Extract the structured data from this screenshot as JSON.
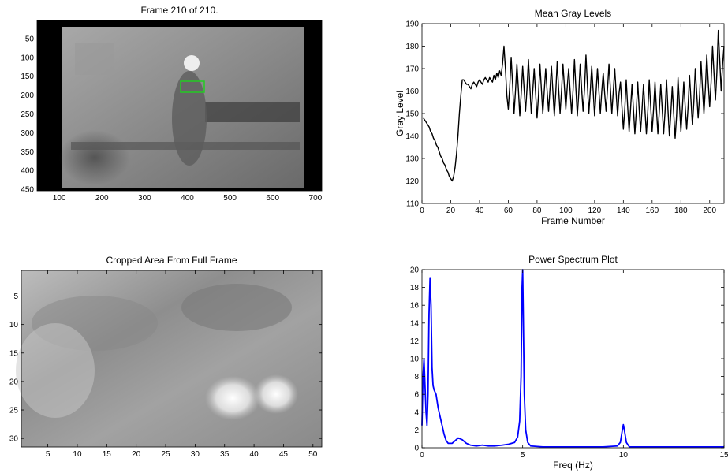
{
  "chart_data": [
    {
      "type": "image",
      "title": "Frame  210 of 210.",
      "xlim": [
        48,
        715
      ],
      "xticks": [
        100,
        200,
        300,
        400,
        500,
        600,
        700
      ],
      "ylim": [
        2,
        454
      ],
      "yticks": [
        50,
        100,
        150,
        200,
        250,
        300,
        350,
        400,
        450
      ],
      "y_reversed": true
    },
    {
      "type": "line",
      "title": "Mean Gray Levels",
      "xlabel": "Frame Number",
      "ylabel": "Gray Level",
      "color": "#000000",
      "xlim": [
        0,
        210
      ],
      "xticks": [
        0,
        20,
        40,
        60,
        80,
        100,
        120,
        140,
        160,
        180,
        200
      ],
      "ylim": [
        110,
        190
      ],
      "yticks": [
        110,
        120,
        130,
        140,
        150,
        160,
        170,
        180,
        190
      ],
      "x": [
        1,
        2,
        3,
        4,
        5,
        6,
        7,
        8,
        9,
        10,
        11,
        12,
        13,
        14,
        15,
        16,
        17,
        18,
        19,
        20,
        21,
        22,
        23,
        24,
        25,
        26,
        27,
        28,
        29,
        30,
        31,
        32,
        33,
        34,
        35,
        36,
        37,
        38,
        39,
        40,
        41,
        42,
        43,
        44,
        45,
        46,
        47,
        48,
        49,
        50,
        51,
        52,
        53,
        54,
        55,
        56,
        57,
        58,
        59,
        60,
        61,
        62,
        63,
        64,
        65,
        66,
        67,
        68,
        69,
        70,
        71,
        72,
        73,
        74,
        75,
        76,
        77,
        78,
        79,
        80,
        81,
        82,
        83,
        84,
        85,
        86,
        87,
        88,
        89,
        90,
        91,
        92,
        93,
        94,
        95,
        96,
        97,
        98,
        99,
        100,
        101,
        102,
        103,
        104,
        105,
        106,
        107,
        108,
        109,
        110,
        111,
        112,
        113,
        114,
        115,
        116,
        117,
        118,
        119,
        120,
        121,
        122,
        123,
        124,
        125,
        126,
        127,
        128,
        129,
        130,
        131,
        132,
        133,
        134,
        135,
        136,
        137,
        138,
        139,
        140,
        141,
        142,
        143,
        144,
        145,
        146,
        147,
        148,
        149,
        150,
        151,
        152,
        153,
        154,
        155,
        156,
        157,
        158,
        159,
        160,
        161,
        162,
        163,
        164,
        165,
        166,
        167,
        168,
        169,
        170,
        171,
        172,
        173,
        174,
        175,
        176,
        177,
        178,
        179,
        180,
        181,
        182,
        183,
        184,
        185,
        186,
        187,
        188,
        189,
        190,
        191,
        192,
        193,
        194,
        195,
        196,
        197,
        198,
        199,
        200,
        201,
        202,
        203,
        204,
        205,
        206,
        207,
        208,
        209,
        210
      ],
      "values": [
        148,
        147,
        146,
        145,
        144,
        142,
        141,
        139,
        138,
        136,
        135,
        133,
        131,
        130,
        128,
        127,
        125,
        124,
        122,
        121,
        120,
        122,
        126,
        132,
        140,
        150,
        158,
        165,
        165,
        164,
        163,
        163,
        162,
        161,
        163,
        164,
        163,
        162,
        164,
        165,
        164,
        163,
        165,
        166,
        165,
        164,
        166,
        165,
        164,
        167,
        165,
        168,
        166,
        169,
        167,
        172,
        180,
        170,
        158,
        152,
        162,
        175,
        163,
        150,
        160,
        172,
        161,
        149,
        159,
        171,
        161,
        151,
        161,
        174,
        162,
        150,
        160,
        170,
        159,
        148,
        158,
        172,
        161,
        150,
        160,
        170,
        160,
        151,
        161,
        171,
        160,
        149,
        159,
        173,
        161,
        150,
        160,
        172,
        162,
        152,
        162,
        170,
        160,
        150,
        160,
        174,
        161,
        149,
        159,
        172,
        161,
        151,
        161,
        176,
        163,
        150,
        160,
        171,
        160,
        149,
        159,
        170,
        160,
        150,
        160,
        168,
        159,
        151,
        161,
        172,
        161,
        150,
        160,
        170,
        159,
        149,
        159,
        164,
        153,
        143,
        152,
        165,
        153,
        142,
        152,
        163,
        152,
        141,
        151,
        164,
        152,
        142,
        152,
        163,
        152,
        141,
        151,
        165,
        153,
        142,
        152,
        164,
        152,
        141,
        151,
        163,
        152,
        141,
        151,
        165,
        152,
        140,
        150,
        162,
        150,
        139,
        149,
        166,
        154,
        142,
        152,
        164,
        153,
        143,
        153,
        167,
        156,
        145,
        155,
        170,
        159,
        148,
        158,
        173,
        161,
        150,
        161,
        176,
        164,
        153,
        164,
        180,
        168,
        156,
        168,
        187,
        174,
        160,
        172,
        180
      ]
    },
    {
      "type": "image",
      "title": "Cropped Area From Full Frame",
      "xlim": [
        0.5,
        51.5
      ],
      "xticks": [
        5,
        10,
        15,
        20,
        25,
        30,
        35,
        40,
        45,
        50
      ],
      "ylim": [
        0.5,
        31.5
      ],
      "yticks": [
        5,
        10,
        15,
        20,
        25,
        30
      ],
      "y_reversed": true
    },
    {
      "type": "line",
      "title": "Power Spectrum Plot",
      "xlabel": "Freq (Hz)",
      "color": "#0000ff",
      "xlim": [
        0,
        15
      ],
      "xticks": [
        0,
        5,
        10,
        15
      ],
      "ylim": [
        0,
        20
      ],
      "yticks": [
        0,
        2,
        4,
        6,
        8,
        10,
        12,
        14,
        16,
        18,
        20
      ],
      "x": [
        0,
        0.05,
        0.1,
        0.15,
        0.2,
        0.25,
        0.3,
        0.35,
        0.4,
        0.45,
        0.5,
        0.55,
        0.6,
        0.7,
        0.8,
        0.9,
        1.0,
        1.1,
        1.2,
        1.3,
        1.5,
        1.7,
        1.8,
        1.9,
        2.0,
        2.2,
        2.4,
        2.7,
        3.0,
        3.3,
        3.6,
        4.0,
        4.3,
        4.6,
        4.75,
        4.85,
        4.92,
        4.97,
        5.0,
        5.03,
        5.08,
        5.15,
        5.25,
        5.4,
        6,
        7,
        8,
        9,
        9.7,
        9.85,
        9.95,
        10.0,
        10.05,
        10.15,
        10.3,
        11,
        12,
        13,
        14,
        15
      ],
      "values": [
        2.5,
        8,
        10,
        7,
        4,
        2.5,
        6,
        15,
        19,
        16,
        9,
        7,
        6.5,
        6,
        4.5,
        3.5,
        2.5,
        1.5,
        0.8,
        0.5,
        0.5,
        0.9,
        1.1,
        1,
        0.9,
        0.5,
        0.3,
        0.2,
        0.3,
        0.2,
        0.2,
        0.3,
        0.4,
        0.6,
        1.2,
        3,
        8,
        18,
        20,
        15,
        6,
        2,
        0.6,
        0.2,
        0.1,
        0.1,
        0.1,
        0.1,
        0.2,
        0.6,
        2,
        2.6,
        2,
        0.6,
        0.1,
        0.1,
        0.1,
        0.1,
        0.1,
        0.1
      ]
    }
  ]
}
